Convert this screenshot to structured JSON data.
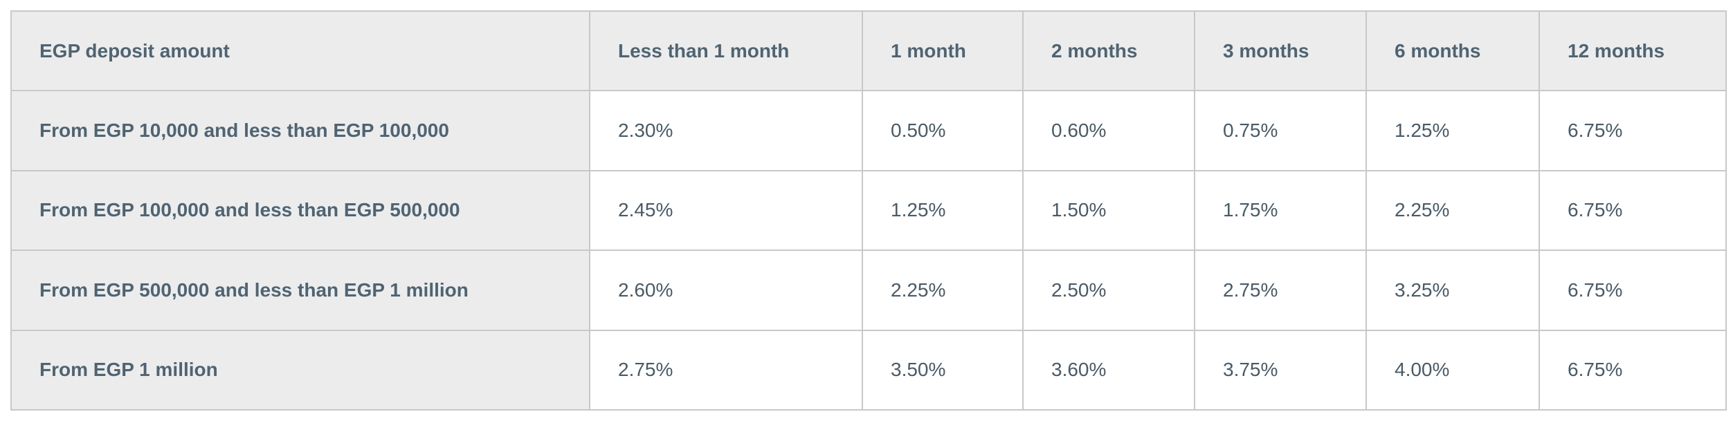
{
  "table": {
    "headers": [
      "EGP deposit amount",
      "Less than 1 month",
      "1 month",
      "2 months",
      "3 months",
      "6 months",
      "12 months"
    ],
    "rows": [
      {
        "label": "From EGP 10,000 and less than EGP 100,000",
        "values": [
          "2.30%",
          "0.50%",
          "0.60%",
          "0.75%",
          "1.25%",
          "6.75%"
        ]
      },
      {
        "label": "From EGP 100,000 and less than EGP 500,000",
        "values": [
          "2.45%",
          "1.25%",
          "1.50%",
          "1.75%",
          "2.25%",
          "6.75%"
        ]
      },
      {
        "label": "From EGP 500,000 and less than EGP 1 million",
        "values": [
          "2.60%",
          "2.25%",
          "2.50%",
          "2.75%",
          "3.25%",
          "6.75%"
        ]
      },
      {
        "label": "From EGP 1 million",
        "values": [
          "2.75%",
          "3.50%",
          "3.60%",
          "3.75%",
          "4.00%",
          "6.75%"
        ]
      }
    ]
  },
  "colors": {
    "header_bg": "#ececec",
    "label_bg": "#ececec",
    "cell_bg": "#ffffff",
    "border": "#c8c8c8",
    "header_text": "#4f6472",
    "cell_text": "#495a66"
  }
}
